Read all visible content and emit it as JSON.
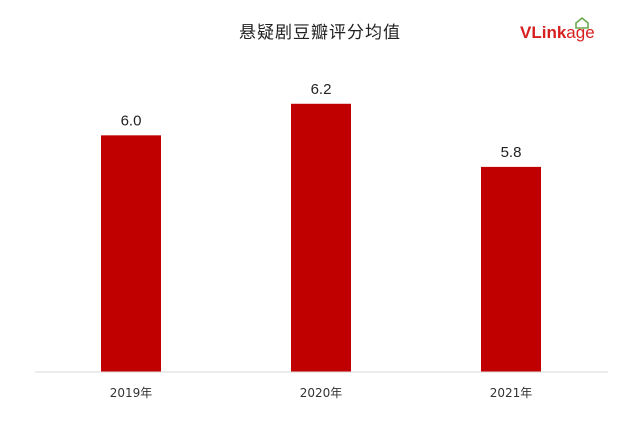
{
  "chart_data": {
    "type": "bar",
    "title": "悬疑剧豆瓣评分均值",
    "categories": [
      "2019年",
      "2020年",
      "2021年"
    ],
    "values": [
      6.0,
      6.2,
      5.8
    ],
    "data_labels": [
      "6.0",
      "6.2",
      "5.8"
    ],
    "xlabel": "",
    "ylabel": "",
    "ylim": [
      4.5,
      6.3
    ],
    "grid": false,
    "legend": "none",
    "bar_color": "#c00000"
  },
  "logo": {
    "text_v": "V",
    "text_rest": "Link",
    "text_age": "age",
    "color_main": "#d6201f",
    "color_accent": "#6aa84f"
  }
}
